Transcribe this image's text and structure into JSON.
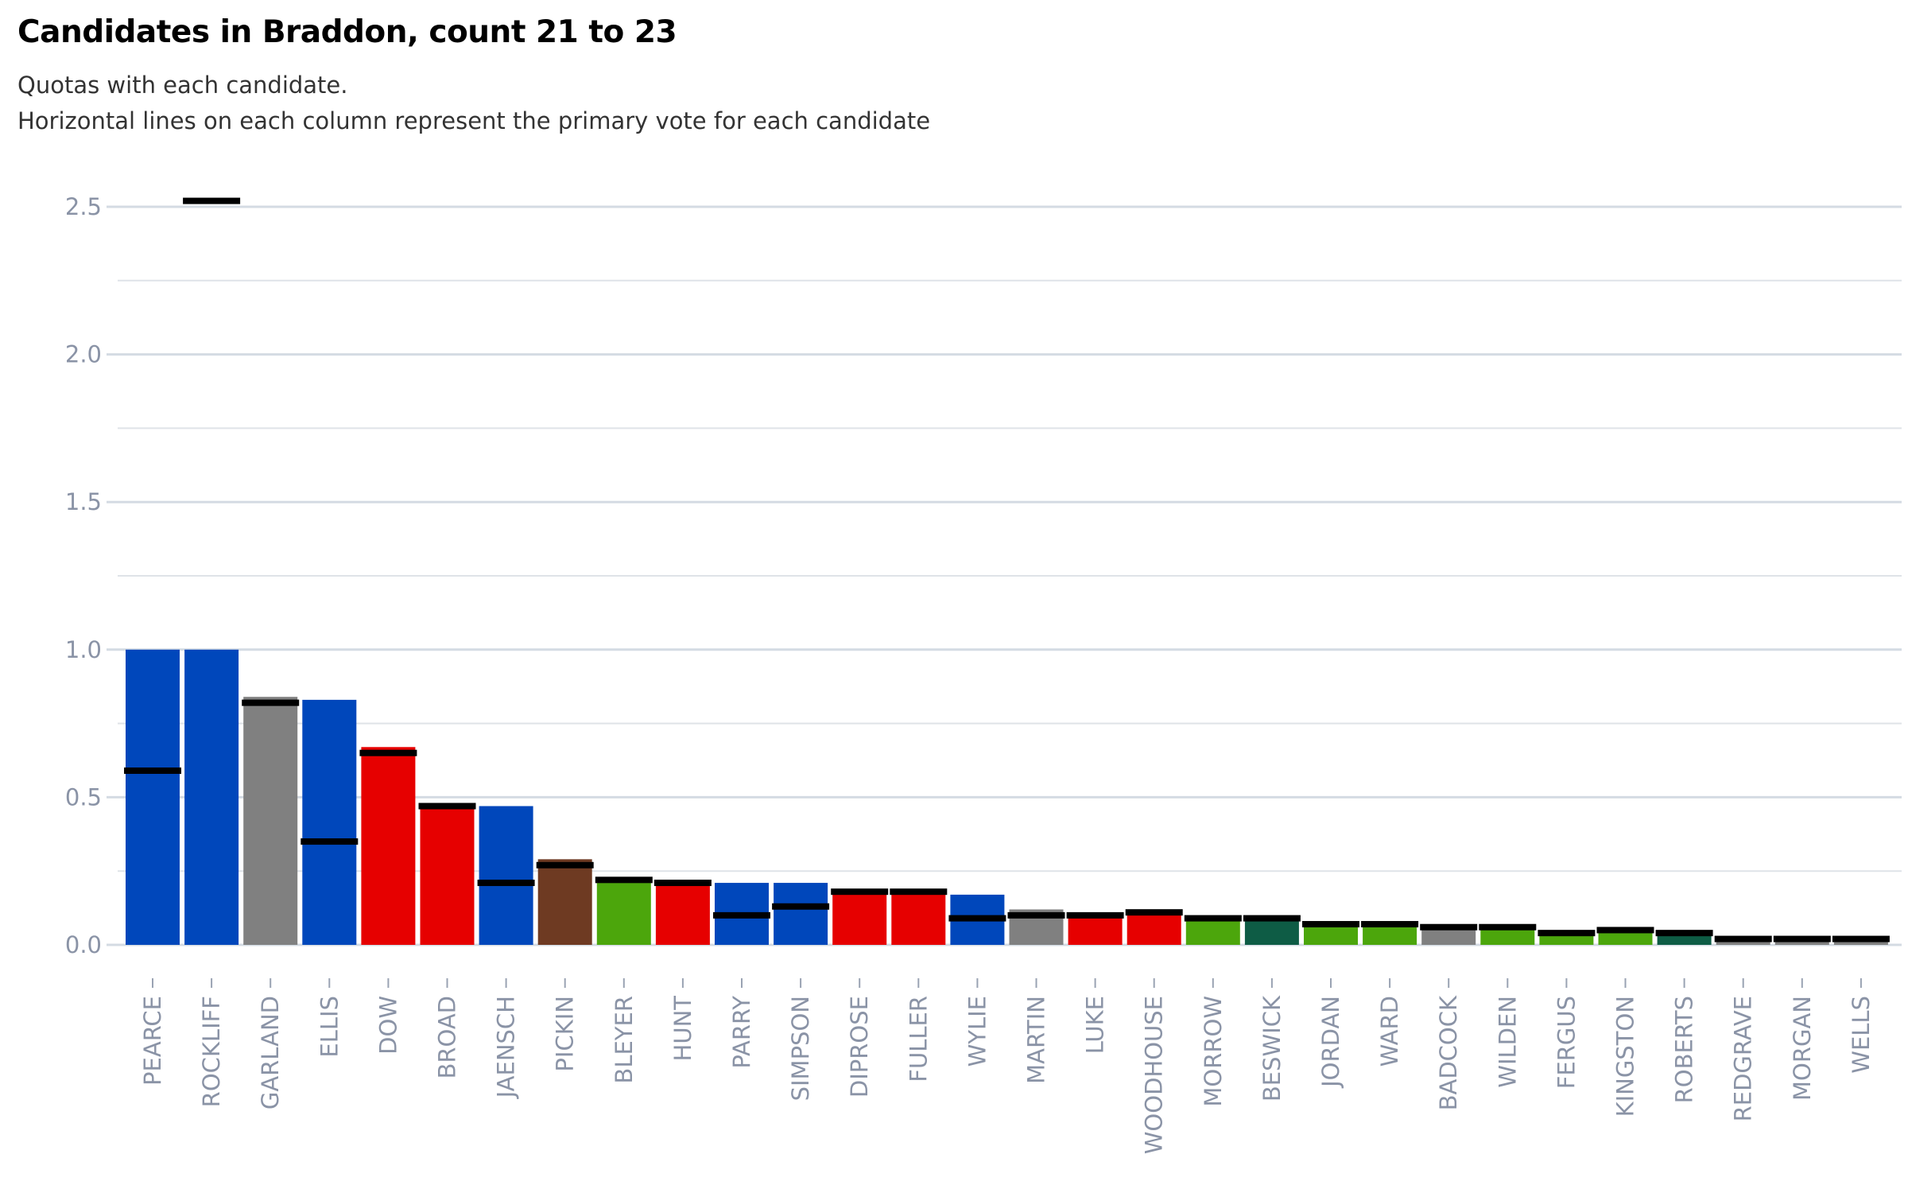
{
  "chart_data": {
    "type": "bar",
    "title": "Candidates in Braddon, count 21 to 23",
    "subtitle_lines": [
      "Quotas with each candidate.",
      "Horizontal lines on each column represent the primary vote for each candidate"
    ],
    "ylim": [
      0,
      2.5
    ],
    "yticks": [
      {
        "value": 0,
        "label": "0.0"
      },
      {
        "value": 0.5,
        "label": "0.5"
      },
      {
        "value": 1.0,
        "label": "1.0"
      },
      {
        "value": 1.5,
        "label": "1.5"
      },
      {
        "value": 2.0,
        "label": "2.0"
      },
      {
        "value": 2.5,
        "label": "2.5"
      }
    ],
    "minor_gridlines": [
      0.25,
      0.75,
      1.25,
      1.75,
      2.25
    ],
    "grid": true,
    "xlabel": "",
    "ylabel": "",
    "candidates": [
      {
        "name": "PEARCE",
        "quota": 1.0,
        "primary": 0.59,
        "color": "#0047bb"
      },
      {
        "name": "ROCKLIFF",
        "quota": 1.0,
        "primary": 2.52,
        "color": "#0047bb"
      },
      {
        "name": "GARLAND",
        "quota": 0.84,
        "primary": 0.82,
        "color": "#808080"
      },
      {
        "name": "ELLIS",
        "quota": 0.83,
        "primary": 0.35,
        "color": "#0047bb"
      },
      {
        "name": "DOW",
        "quota": 0.67,
        "primary": 0.65,
        "color": "#e60000"
      },
      {
        "name": "BROAD",
        "quota": 0.47,
        "primary": 0.47,
        "color": "#e60000"
      },
      {
        "name": "JAENSCH",
        "quota": 0.47,
        "primary": 0.21,
        "color": "#0047bb"
      },
      {
        "name": "PICKIN",
        "quota": 0.29,
        "primary": 0.27,
        "color": "#6e3a22"
      },
      {
        "name": "BLEYER",
        "quota": 0.22,
        "primary": 0.22,
        "color": "#4ca60c"
      },
      {
        "name": "HUNT",
        "quota": 0.21,
        "primary": 0.21,
        "color": "#e60000"
      },
      {
        "name": "PARRY",
        "quota": 0.21,
        "primary": 0.1,
        "color": "#0047bb"
      },
      {
        "name": "SIMPSON",
        "quota": 0.21,
        "primary": 0.13,
        "color": "#0047bb"
      },
      {
        "name": "DIPROSE",
        "quota": 0.18,
        "primary": 0.18,
        "color": "#e60000"
      },
      {
        "name": "FULLER",
        "quota": 0.18,
        "primary": 0.18,
        "color": "#e60000"
      },
      {
        "name": "WYLIE",
        "quota": 0.17,
        "primary": 0.09,
        "color": "#0047bb"
      },
      {
        "name": "MARTIN",
        "quota": 0.12,
        "primary": 0.1,
        "color": "#808080"
      },
      {
        "name": "LUKE",
        "quota": 0.1,
        "primary": 0.1,
        "color": "#e60000"
      },
      {
        "name": "WOODHOUSE",
        "quota": 0.11,
        "primary": 0.11,
        "color": "#e60000"
      },
      {
        "name": "MORROW",
        "quota": 0.09,
        "primary": 0.09,
        "color": "#4ca60c"
      },
      {
        "name": "BESWICK",
        "quota": 0.09,
        "primary": 0.09,
        "color": "#0e5c45"
      },
      {
        "name": "JORDAN",
        "quota": 0.07,
        "primary": 0.07,
        "color": "#4ca60c"
      },
      {
        "name": "WARD",
        "quota": 0.07,
        "primary": 0.07,
        "color": "#4ca60c"
      },
      {
        "name": "BADCOCK",
        "quota": 0.06,
        "primary": 0.06,
        "color": "#808080"
      },
      {
        "name": "WILDEN",
        "quota": 0.06,
        "primary": 0.06,
        "color": "#4ca60c"
      },
      {
        "name": "FERGUS",
        "quota": 0.04,
        "primary": 0.04,
        "color": "#4ca60c"
      },
      {
        "name": "KINGSTON",
        "quota": 0.05,
        "primary": 0.05,
        "color": "#4ca60c"
      },
      {
        "name": "ROBERTS",
        "quota": 0.04,
        "primary": 0.04,
        "color": "#0e5c45"
      },
      {
        "name": "REDGRAVE",
        "quota": 0.02,
        "primary": 0.02,
        "color": "#808080"
      },
      {
        "name": "MORGAN",
        "quota": 0.02,
        "primary": 0.02,
        "color": "#808080"
      },
      {
        "name": "WELLS",
        "quota": 0.02,
        "primary": 0.02,
        "color": "#808080"
      }
    ],
    "colors": {
      "gridline": "#d4dbe3",
      "axis_text": "#8a93a6",
      "primary_marker": "#000000"
    }
  }
}
